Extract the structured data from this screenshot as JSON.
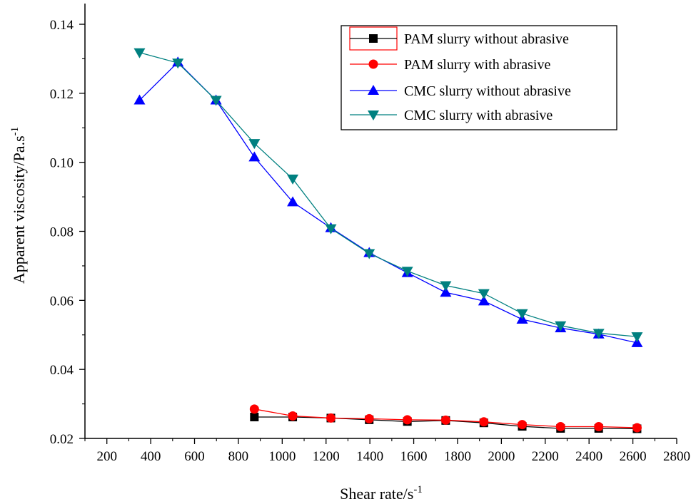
{
  "chart_data": {
    "type": "line",
    "title": "",
    "xlabel": "Shear rate/s",
    "xlabel_sup": "-1",
    "ylabel": "Apparent viscosity/Pa.s",
    "ylabel_sup": "-1",
    "xlim": [
      100,
      2800
    ],
    "ylim": [
      0.02,
      0.146
    ],
    "x_ticks": [
      200,
      400,
      600,
      800,
      1000,
      1200,
      1400,
      1600,
      1800,
      2000,
      2200,
      2400,
      2600,
      2800
    ],
    "y_ticks": [
      0.02,
      0.04,
      0.06,
      0.08,
      0.1,
      0.12,
      0.14
    ],
    "y_tick_labels": [
      "0.02",
      "0.04",
      "0.06",
      "0.08",
      "0.10",
      "0.12",
      "0.14"
    ],
    "grid": false,
    "legend_position": "top-right",
    "series": [
      {
        "name": "PAM slurry without abrasive",
        "color": "#000000",
        "marker": "square",
        "x": [
          873,
          1048,
          1222,
          1397,
          1571,
          1746,
          1920,
          2095,
          2270,
          2444,
          2619
        ],
        "y": [
          0.0262,
          0.0262,
          0.0259,
          0.0254,
          0.0249,
          0.0252,
          0.0245,
          0.0235,
          0.0229,
          0.0229,
          0.0228
        ]
      },
      {
        "name": "PAM slurry with abrasive",
        "color": "#ff0000",
        "marker": "circle",
        "x": [
          873,
          1048,
          1222,
          1397,
          1571,
          1746,
          1920,
          2095,
          2270,
          2444,
          2619
        ],
        "y": [
          0.0285,
          0.0265,
          0.0259,
          0.0257,
          0.0254,
          0.0253,
          0.0248,
          0.024,
          0.0234,
          0.0234,
          0.0231
        ]
      },
      {
        "name": "CMC slurry without abrasive",
        "color": "#0000ff",
        "marker": "triangle-up",
        "x": [
          349,
          524,
          698,
          873,
          1048,
          1222,
          1397,
          1571,
          1746,
          1920,
          2095,
          2270,
          2444,
          2619
        ],
        "y": [
          0.118,
          0.129,
          0.118,
          0.1015,
          0.0885,
          0.081,
          0.0738,
          0.068,
          0.0623,
          0.0598,
          0.0545,
          0.052,
          0.0502,
          0.0477
        ]
      },
      {
        "name": "CMC slurry with abrasive",
        "color": "#008080",
        "marker": "triangle-down",
        "x": [
          349,
          524,
          698,
          873,
          1048,
          1222,
          1397,
          1571,
          1746,
          1920,
          2095,
          2270,
          2444,
          2619
        ],
        "y": [
          0.1318,
          0.1288,
          0.118,
          0.1055,
          0.0952,
          0.0808,
          0.0736,
          0.0685,
          0.0643,
          0.062,
          0.0562,
          0.0527,
          0.0505,
          0.0495
        ]
      }
    ]
  }
}
